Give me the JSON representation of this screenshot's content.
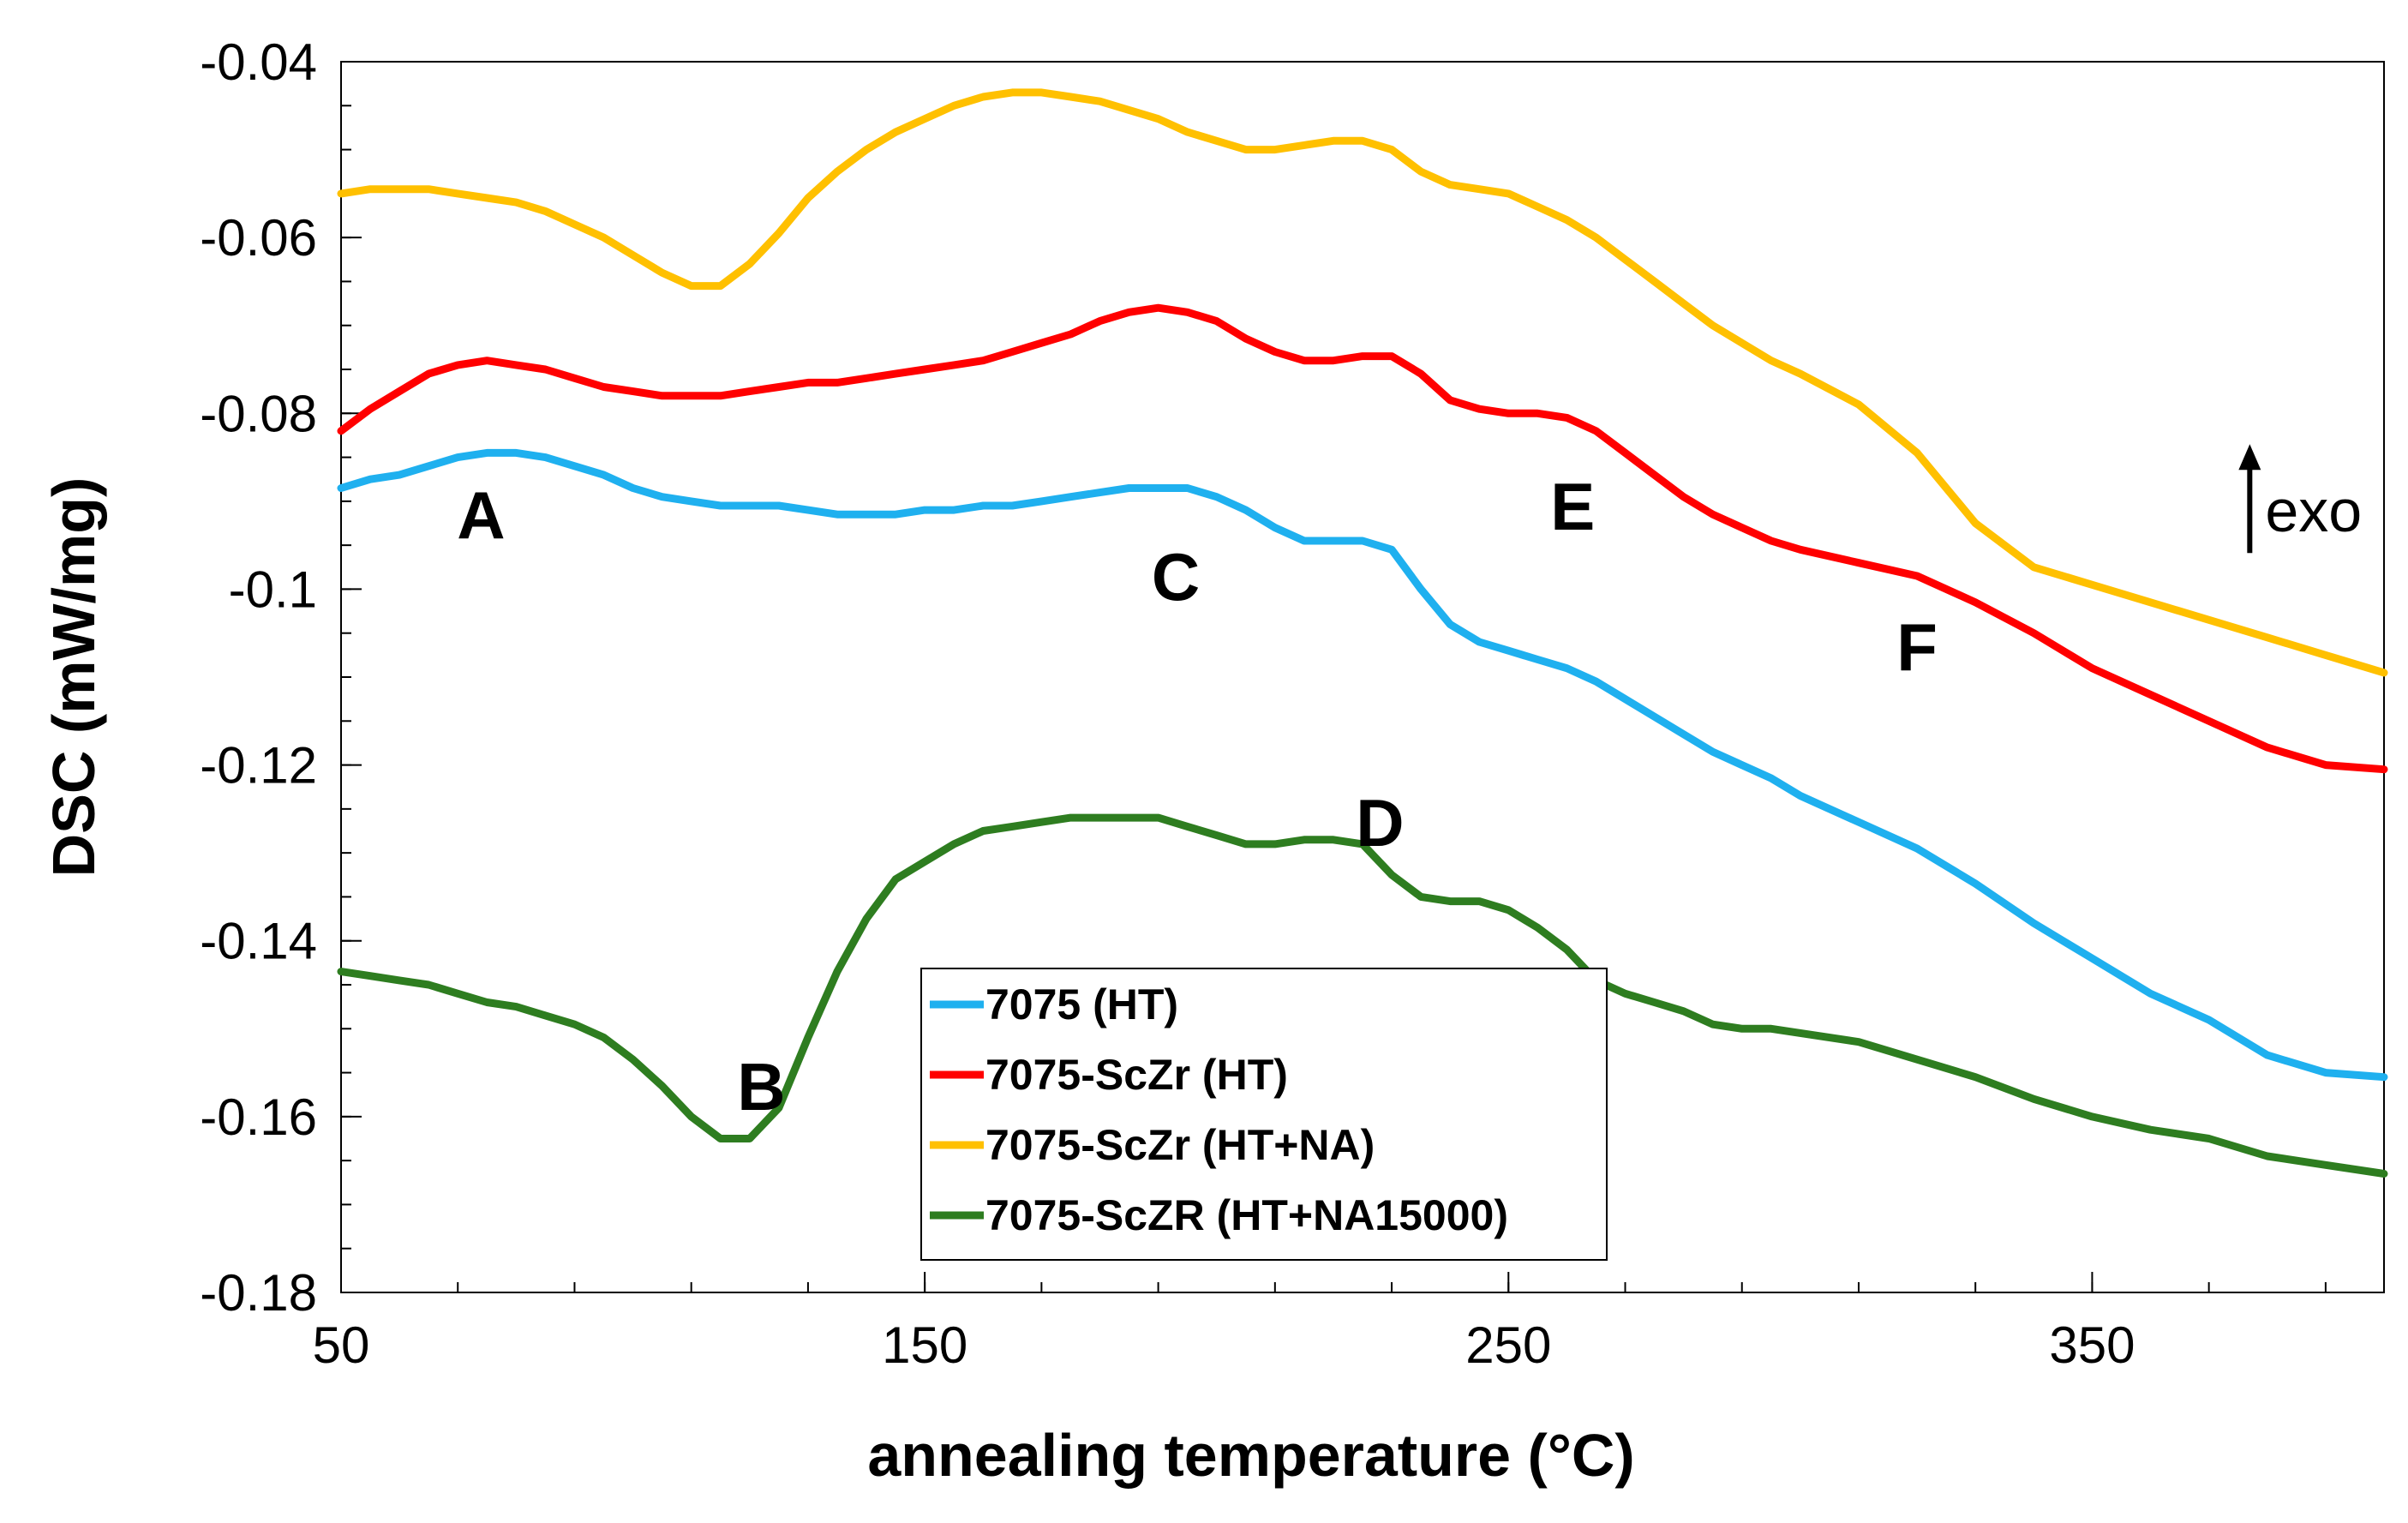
{
  "chart_data": {
    "type": "line",
    "title": "",
    "xlabel": "annealing temperature (°C)",
    "ylabel": "DSC (mW/mg)",
    "xlim": [
      50,
      400
    ],
    "ylim": [
      -0.18,
      -0.04
    ],
    "grid": false,
    "legend_position": "lower-center",
    "x_ticks": [
      50,
      150,
      250,
      350
    ],
    "x_tick_labels": [
      "50",
      "150",
      "250",
      "350"
    ],
    "y_ticks": [
      -0.04,
      -0.06,
      -0.08,
      -0.1,
      -0.12,
      -0.14,
      -0.16,
      -0.18
    ],
    "y_tick_labels": [
      "-0.04",
      "-0.06",
      "-0.08",
      "-0.1",
      "-0.12",
      "-0.14",
      "-0.16",
      "-0.18"
    ],
    "annotations": [
      {
        "text": "A",
        "x": 74,
        "y": -0.0915
      },
      {
        "text": "B",
        "x": 122,
        "y": -0.1565
      },
      {
        "text": "C",
        "x": 193,
        "y": -0.0985
      },
      {
        "text": "D",
        "x": 228,
        "y": -0.1265
      },
      {
        "text": "E",
        "x": 261,
        "y": -0.0905
      },
      {
        "text": "F",
        "x": 320,
        "y": -0.1065
      },
      {
        "text": "exo",
        "x": 377,
        "y": -0.0915,
        "arrow": "up"
      }
    ],
    "series": [
      {
        "name": "7075 (HT)",
        "color": "#1fb0ef",
        "x": [
          50,
          55,
          60,
          65,
          70,
          75,
          80,
          85,
          90,
          95,
          100,
          105,
          110,
          115,
          120,
          125,
          130,
          135,
          140,
          145,
          150,
          155,
          160,
          165,
          170,
          175,
          180,
          185,
          190,
          195,
          200,
          205,
          210,
          215,
          220,
          225,
          230,
          235,
          240,
          245,
          250,
          255,
          260,
          265,
          270,
          275,
          280,
          285,
          290,
          295,
          300,
          310,
          320,
          330,
          340,
          350,
          360,
          370,
          380,
          390,
          400
        ],
        "y": [
          -0.0885,
          -0.0875,
          -0.087,
          -0.086,
          -0.085,
          -0.0845,
          -0.0845,
          -0.085,
          -0.086,
          -0.087,
          -0.0885,
          -0.0895,
          -0.09,
          -0.0905,
          -0.0905,
          -0.0905,
          -0.091,
          -0.0915,
          -0.0915,
          -0.0915,
          -0.091,
          -0.091,
          -0.0905,
          -0.0905,
          -0.09,
          -0.0895,
          -0.089,
          -0.0885,
          -0.0885,
          -0.0885,
          -0.0895,
          -0.091,
          -0.093,
          -0.0945,
          -0.0945,
          -0.0945,
          -0.0955,
          -0.1,
          -0.104,
          -0.106,
          -0.107,
          -0.108,
          -0.109,
          -0.1105,
          -0.1125,
          -0.1145,
          -0.1165,
          -0.1185,
          -0.12,
          -0.1215,
          -0.1235,
          -0.1265,
          -0.1295,
          -0.1335,
          -0.138,
          -0.142,
          -0.146,
          -0.149,
          -0.153,
          -0.155,
          -0.1555
        ]
      },
      {
        "name": "7075-ScZr (HT)",
        "color": "#ff0000",
        "x": [
          50,
          55,
          60,
          65,
          70,
          75,
          80,
          85,
          90,
          95,
          100,
          105,
          110,
          115,
          120,
          125,
          130,
          135,
          140,
          145,
          150,
          155,
          160,
          165,
          170,
          175,
          180,
          185,
          190,
          195,
          200,
          205,
          210,
          215,
          220,
          225,
          230,
          235,
          240,
          245,
          250,
          255,
          260,
          265,
          270,
          275,
          280,
          285,
          290,
          295,
          300,
          310,
          320,
          330,
          340,
          350,
          360,
          370,
          380,
          390,
          400
        ],
        "y": [
          -0.082,
          -0.0795,
          -0.0775,
          -0.0755,
          -0.0745,
          -0.074,
          -0.0745,
          -0.075,
          -0.076,
          -0.077,
          -0.0775,
          -0.078,
          -0.078,
          -0.078,
          -0.0775,
          -0.077,
          -0.0765,
          -0.0765,
          -0.076,
          -0.0755,
          -0.075,
          -0.0745,
          -0.074,
          -0.073,
          -0.072,
          -0.071,
          -0.0695,
          -0.0685,
          -0.068,
          -0.0685,
          -0.0695,
          -0.0715,
          -0.073,
          -0.074,
          -0.074,
          -0.0735,
          -0.0735,
          -0.0755,
          -0.0785,
          -0.0795,
          -0.08,
          -0.08,
          -0.0805,
          -0.082,
          -0.0845,
          -0.087,
          -0.0895,
          -0.0915,
          -0.093,
          -0.0945,
          -0.0955,
          -0.097,
          -0.0985,
          -0.1015,
          -0.105,
          -0.109,
          -0.112,
          -0.115,
          -0.118,
          -0.12,
          -0.1205
        ]
      },
      {
        "name": "7075-ScZr (HT+NA)",
        "color": "#ffc000",
        "x": [
          50,
          55,
          60,
          65,
          70,
          75,
          80,
          85,
          90,
          95,
          100,
          105,
          110,
          115,
          120,
          125,
          130,
          135,
          140,
          145,
          150,
          155,
          160,
          165,
          170,
          175,
          180,
          185,
          190,
          195,
          200,
          205,
          210,
          215,
          220,
          225,
          230,
          235,
          240,
          245,
          250,
          255,
          260,
          265,
          270,
          275,
          280,
          285,
          290,
          295,
          300,
          310,
          320,
          330,
          340,
          350,
          360,
          370,
          380,
          390,
          400
        ],
        "y": [
          -0.055,
          -0.0545,
          -0.0545,
          -0.0545,
          -0.055,
          -0.0555,
          -0.056,
          -0.057,
          -0.0585,
          -0.06,
          -0.062,
          -0.064,
          -0.0655,
          -0.0655,
          -0.063,
          -0.0595,
          -0.0555,
          -0.0525,
          -0.05,
          -0.048,
          -0.0465,
          -0.045,
          -0.044,
          -0.0435,
          -0.0435,
          -0.044,
          -0.0445,
          -0.0455,
          -0.0465,
          -0.048,
          -0.049,
          -0.05,
          -0.05,
          -0.0495,
          -0.049,
          -0.049,
          -0.05,
          -0.0525,
          -0.054,
          -0.0545,
          -0.055,
          -0.0565,
          -0.058,
          -0.06,
          -0.0625,
          -0.065,
          -0.0675,
          -0.07,
          -0.072,
          -0.074,
          -0.0755,
          -0.079,
          -0.0845,
          -0.0925,
          -0.0975,
          -0.0995,
          -0.1015,
          -0.1035,
          -0.1055,
          -0.1075,
          -0.1095
        ]
      },
      {
        "name": "7075-ScZR (HT+NA15000)",
        "color": "#2e7d20",
        "x": [
          50,
          55,
          60,
          65,
          70,
          75,
          80,
          85,
          90,
          95,
          100,
          105,
          110,
          115,
          120,
          125,
          130,
          135,
          140,
          145,
          150,
          155,
          160,
          165,
          170,
          175,
          180,
          185,
          190,
          195,
          200,
          205,
          210,
          215,
          220,
          225,
          230,
          235,
          240,
          245,
          250,
          255,
          260,
          265,
          270,
          275,
          280,
          285,
          290,
          295,
          300,
          310,
          320,
          330,
          340,
          350,
          360,
          370,
          380,
          390,
          400
        ],
        "y": [
          -0.1435,
          -0.144,
          -0.1445,
          -0.145,
          -0.146,
          -0.147,
          -0.1475,
          -0.1485,
          -0.1495,
          -0.151,
          -0.1535,
          -0.1565,
          -0.16,
          -0.1625,
          -0.1625,
          -0.159,
          -0.151,
          -0.1435,
          -0.1375,
          -0.133,
          -0.131,
          -0.129,
          -0.1275,
          -0.127,
          -0.1265,
          -0.126,
          -0.126,
          -0.126,
          -0.126,
          -0.127,
          -0.128,
          -0.129,
          -0.129,
          -0.1285,
          -0.1285,
          -0.129,
          -0.1325,
          -0.135,
          -0.1355,
          -0.1355,
          -0.1365,
          -0.1385,
          -0.141,
          -0.1445,
          -0.146,
          -0.147,
          -0.148,
          -0.1495,
          -0.15,
          -0.15,
          -0.1505,
          -0.1515,
          -0.1535,
          -0.1555,
          -0.158,
          -0.16,
          -0.1615,
          -0.1625,
          -0.1645,
          -0.1655,
          -0.1665
        ]
      }
    ]
  }
}
